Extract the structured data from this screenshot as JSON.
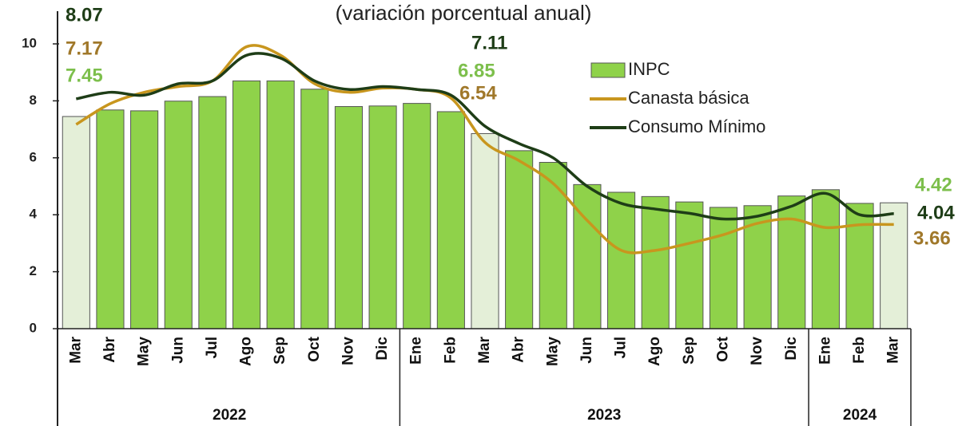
{
  "chart_data": {
    "type": "bar",
    "subtitle": "(variación porcentual anual)",
    "categories": [
      "Mar",
      "Abr",
      "May",
      "Jun",
      "Jul",
      "Ago",
      "Sep",
      "Oct",
      "Nov",
      "Dic",
      "Ene",
      "Feb",
      "Mar",
      "Abr",
      "May",
      "Jun",
      "Jul",
      "Ago",
      "Sep",
      "Oct",
      "Nov",
      "Dic",
      "Ene",
      "Feb",
      "Mar"
    ],
    "groups": [
      {
        "label": "2022",
        "size": 10
      },
      {
        "label": "2023",
        "size": 12
      },
      {
        "label": "2024",
        "size": 3
      }
    ],
    "series": [
      {
        "name": "INPC",
        "type": "bar",
        "color": "#8fd24a",
        "highlight_color": "#e4efd8",
        "label_color": "#7dbf4c",
        "highlighted": [
          true,
          false,
          false,
          false,
          false,
          false,
          false,
          false,
          false,
          false,
          false,
          false,
          true,
          false,
          false,
          false,
          false,
          false,
          false,
          false,
          false,
          false,
          false,
          false,
          true
        ],
        "values": [
          7.45,
          7.68,
          7.65,
          7.99,
          8.15,
          8.7,
          8.7,
          8.41,
          7.8,
          7.82,
          7.91,
          7.62,
          6.85,
          6.25,
          5.84,
          5.06,
          4.79,
          4.64,
          4.45,
          4.26,
          4.32,
          4.66,
          4.88,
          4.4,
          4.42
        ]
      },
      {
        "name": "Canasta básica",
        "type": "line",
        "color": "#c8961e",
        "label_color": "#a0782a",
        "values": [
          7.17,
          7.9,
          8.3,
          8.5,
          8.7,
          9.9,
          9.6,
          8.6,
          8.3,
          8.45,
          8.4,
          8.1,
          6.54,
          5.9,
          5.1,
          3.8,
          2.75,
          2.75,
          3.0,
          3.3,
          3.7,
          3.85,
          3.55,
          3.65,
          3.66
        ]
      },
      {
        "name": "Consumo Mínimo",
        "type": "line",
        "color": "#1e3d17",
        "label_color": "#1e3d17",
        "values": [
          8.07,
          8.3,
          8.2,
          8.6,
          8.7,
          9.6,
          9.5,
          8.7,
          8.4,
          8.5,
          8.4,
          8.2,
          7.11,
          6.5,
          6.0,
          5.0,
          4.4,
          4.2,
          4.05,
          3.85,
          3.95,
          4.3,
          4.75,
          4.0,
          4.04
        ]
      }
    ],
    "ylim": [
      0,
      10
    ],
    "yticks": [
      0,
      2,
      4,
      6,
      8,
      10
    ],
    "grid": false
  }
}
